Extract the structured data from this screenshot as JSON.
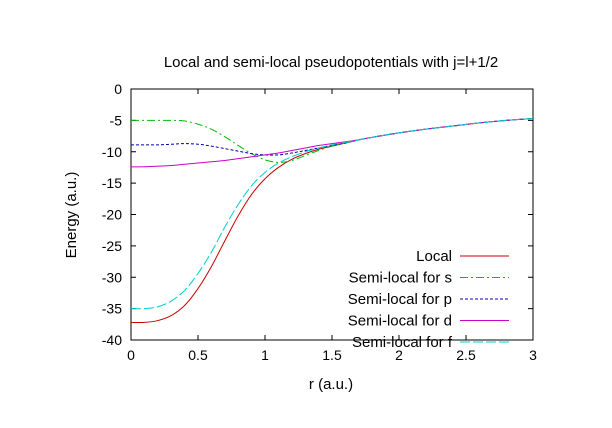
{
  "chart_data": {
    "type": "line",
    "title": "Local and semi-local pseudopotentials with j=l+1/2",
    "xlabel": "r (a.u.)",
    "ylabel": "Energy (a.u.)",
    "xlim": [
      0,
      3
    ],
    "ylim": [
      -40,
      0
    ],
    "x_ticks": [
      "0",
      "0.5",
      "1",
      "1.5",
      "2",
      "2.5",
      "3"
    ],
    "y_ticks": [
      "0",
      "-5",
      "-10",
      "-15",
      "-20",
      "-25",
      "-30",
      "-35",
      "-40"
    ],
    "grid": false,
    "legend_position": "bottom-right",
    "series": [
      {
        "name": "Local",
        "color": "#cc0000",
        "dash": "solid",
        "x": [
          0,
          0.1,
          0.2,
          0.3,
          0.4,
          0.5,
          0.6,
          0.7,
          0.8,
          0.9,
          1.0,
          1.1,
          1.2,
          1.3,
          1.4,
          1.5,
          1.6,
          1.7,
          1.8,
          2.0,
          2.2,
          2.4,
          2.6,
          2.8,
          3.0
        ],
        "y": [
          -37.2,
          -37.2,
          -36.9,
          -36.1,
          -34.5,
          -31.8,
          -28.3,
          -24.2,
          -20.2,
          -16.8,
          -14.3,
          -12.5,
          -11.2,
          -10.3,
          -9.6,
          -9.1,
          -8.6,
          -8.1,
          -7.7,
          -7.0,
          -6.4,
          -5.9,
          -5.4,
          -5.0,
          -4.7
        ]
      },
      {
        "name": "Semi-local for s",
        "color": "#00bb00",
        "dash": "8 3 2 3",
        "x": [
          0,
          0.1,
          0.2,
          0.3,
          0.4,
          0.5,
          0.6,
          0.7,
          0.8,
          0.9,
          1.0,
          1.1,
          1.2,
          1.3,
          1.4,
          1.5,
          1.6,
          1.7,
          1.8,
          2.0,
          2.2,
          2.4,
          2.6,
          2.8,
          3.0
        ],
        "y": [
          -5.0,
          -5.0,
          -5.0,
          -5.0,
          -5.1,
          -5.6,
          -6.4,
          -7.6,
          -9.0,
          -10.3,
          -11.3,
          -11.7,
          -11.4,
          -10.6,
          -9.8,
          -9.1,
          -8.6,
          -8.1,
          -7.7,
          -7.0,
          -6.4,
          -5.9,
          -5.4,
          -5.0,
          -4.7
        ]
      },
      {
        "name": "Semi-local for p",
        "color": "#0000aa",
        "dash": "3 2",
        "x": [
          0,
          0.1,
          0.2,
          0.3,
          0.4,
          0.5,
          0.6,
          0.7,
          0.8,
          0.9,
          1.0,
          1.1,
          1.2,
          1.3,
          1.4,
          1.5,
          1.6,
          1.7,
          1.8,
          2.0,
          2.2,
          2.4,
          2.6,
          2.8,
          3.0
        ],
        "y": [
          -8.9,
          -8.9,
          -8.9,
          -8.8,
          -8.7,
          -8.8,
          -9.1,
          -9.5,
          -9.9,
          -10.3,
          -10.5,
          -10.5,
          -10.2,
          -9.8,
          -9.4,
          -9.0,
          -8.6,
          -8.1,
          -7.7,
          -7.0,
          -6.4,
          -5.9,
          -5.4,
          -5.0,
          -4.7
        ]
      },
      {
        "name": "Semi-local for d",
        "color": "#cc00cc",
        "dash": "solid",
        "x": [
          0,
          0.1,
          0.2,
          0.3,
          0.4,
          0.5,
          0.6,
          0.7,
          0.8,
          0.9,
          1.0,
          1.1,
          1.2,
          1.3,
          1.4,
          1.5,
          1.6,
          1.7,
          1.8,
          2.0,
          2.2,
          2.4,
          2.6,
          2.8,
          3.0
        ],
        "y": [
          -12.4,
          -12.4,
          -12.3,
          -12.2,
          -12.0,
          -11.8,
          -11.6,
          -11.4,
          -11.1,
          -10.8,
          -10.5,
          -10.2,
          -9.8,
          -9.4,
          -9.0,
          -8.7,
          -8.4,
          -8.1,
          -7.7,
          -7.0,
          -6.4,
          -5.9,
          -5.4,
          -5.0,
          -4.7
        ]
      },
      {
        "name": "Semi-local for f",
        "color": "#00cccc",
        "dash": "10 3",
        "x": [
          0,
          0.1,
          0.2,
          0.3,
          0.4,
          0.5,
          0.6,
          0.7,
          0.8,
          0.9,
          1.0,
          1.1,
          1.2,
          1.3,
          1.4,
          1.5,
          1.6,
          1.7,
          1.8,
          2.0,
          2.2,
          2.4,
          2.6,
          2.8,
          3.0
        ],
        "y": [
          -35.0,
          -35.0,
          -34.7,
          -33.8,
          -32.1,
          -29.4,
          -26.0,
          -22.0,
          -18.4,
          -15.4,
          -13.3,
          -11.8,
          -10.8,
          -10.0,
          -9.4,
          -8.9,
          -8.5,
          -8.1,
          -7.7,
          -7.0,
          -6.4,
          -5.9,
          -5.4,
          -5.0,
          -4.7
        ]
      }
    ]
  }
}
